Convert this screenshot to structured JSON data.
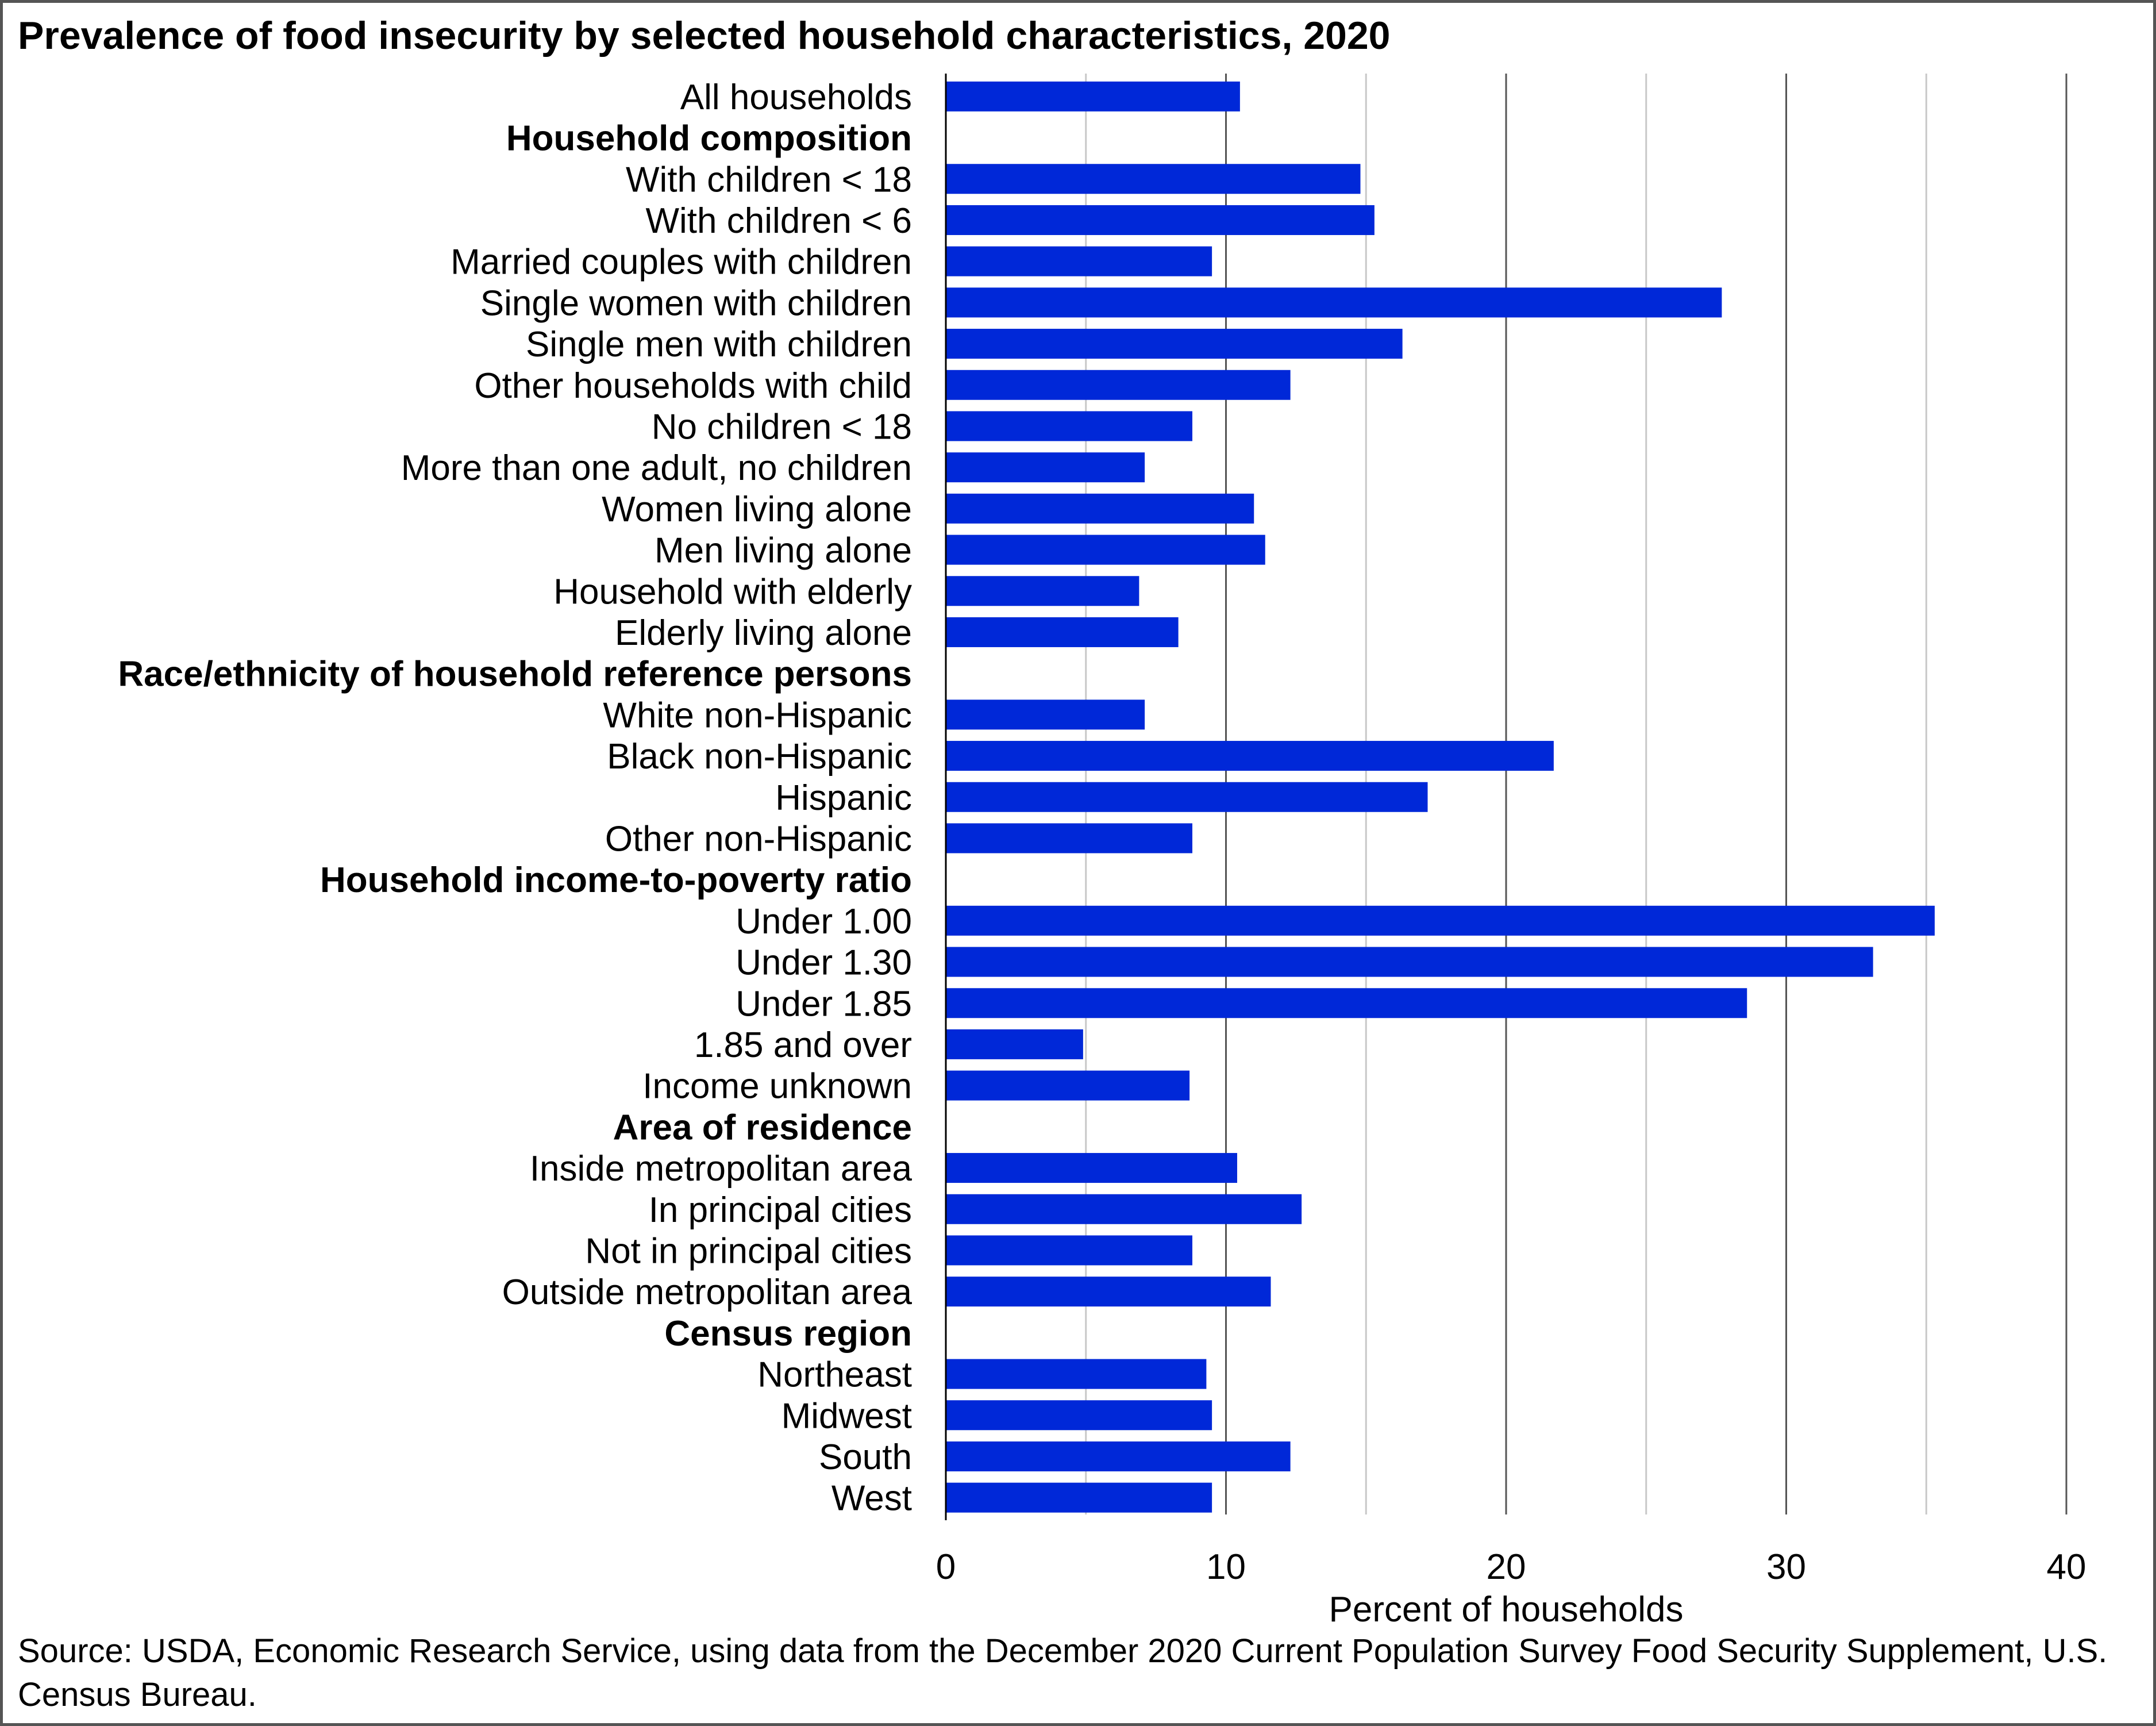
{
  "chart_data": {
    "type": "bar",
    "orientation": "horizontal",
    "title": "Prevalence of food insecurity by selected household characteristics, 2020",
    "xlabel": "Percent of households",
    "ylabel": "",
    "xlim": [
      0,
      40
    ],
    "xticks": [
      0,
      10,
      20,
      30,
      40
    ],
    "grid": "vertical major and minor gridlines",
    "bar_color": "#0028d8",
    "categories": [
      {
        "label": "All households",
        "value": 10.5,
        "header": false
      },
      {
        "label": "Household composition",
        "value": null,
        "header": true
      },
      {
        "label": "With children < 18",
        "value": 14.8,
        "header": false
      },
      {
        "label": "With children < 6",
        "value": 15.3,
        "header": false
      },
      {
        "label": "Married couples with children",
        "value": 9.5,
        "header": false
      },
      {
        "label": "Single women with children",
        "value": 27.7,
        "header": false
      },
      {
        "label": "Single men with children",
        "value": 16.3,
        "header": false
      },
      {
        "label": "Other households with child",
        "value": 12.3,
        "header": false
      },
      {
        "label": "No children < 18",
        "value": 8.8,
        "header": false
      },
      {
        "label": "More than one adult, no children",
        "value": 7.1,
        "header": false
      },
      {
        "label": "Women living alone",
        "value": 11.0,
        "header": false
      },
      {
        "label": "Men living alone",
        "value": 11.4,
        "header": false
      },
      {
        "label": "Household with elderly",
        "value": 6.9,
        "header": false
      },
      {
        "label": "Elderly living alone",
        "value": 8.3,
        "header": false
      },
      {
        "label": "Race/ethnicity of household reference persons",
        "value": null,
        "header": true
      },
      {
        "label": "White non-Hispanic",
        "value": 7.1,
        "header": false
      },
      {
        "label": "Black non-Hispanic",
        "value": 21.7,
        "header": false
      },
      {
        "label": "Hispanic",
        "value": 17.2,
        "header": false
      },
      {
        "label": "Other non-Hispanic",
        "value": 8.8,
        "header": false
      },
      {
        "label": "Household income-to-poverty ratio",
        "value": null,
        "header": true
      },
      {
        "label": "Under 1.00",
        "value": 35.3,
        "header": false
      },
      {
        "label": "Under 1.30",
        "value": 33.1,
        "header": false
      },
      {
        "label": "Under 1.85",
        "value": 28.6,
        "header": false
      },
      {
        "label": "1.85 and over",
        "value": 4.9,
        "header": false
      },
      {
        "label": "Income unknown",
        "value": 8.7,
        "header": false
      },
      {
        "label": "Area of residence",
        "value": null,
        "header": true
      },
      {
        "label": "Inside metropolitan area",
        "value": 10.4,
        "header": false
      },
      {
        "label": "In principal cities",
        "value": 12.7,
        "header": false
      },
      {
        "label": "Not in principal cities",
        "value": 8.8,
        "header": false
      },
      {
        "label": "Outside metropolitan area",
        "value": 11.6,
        "header": false
      },
      {
        "label": "Census region",
        "value": null,
        "header": true
      },
      {
        "label": "Northeast",
        "value": 9.3,
        "header": false
      },
      {
        "label": "Midwest",
        "value": 9.5,
        "header": false
      },
      {
        "label": "South",
        "value": 12.3,
        "header": false
      },
      {
        "label": "West",
        "value": 9.5,
        "header": false
      }
    ]
  },
  "source_note": "Source: USDA, Economic Research Service, using data from the December 2020 Current Population Survey Food Security Supplement, U.S. Census Bureau."
}
